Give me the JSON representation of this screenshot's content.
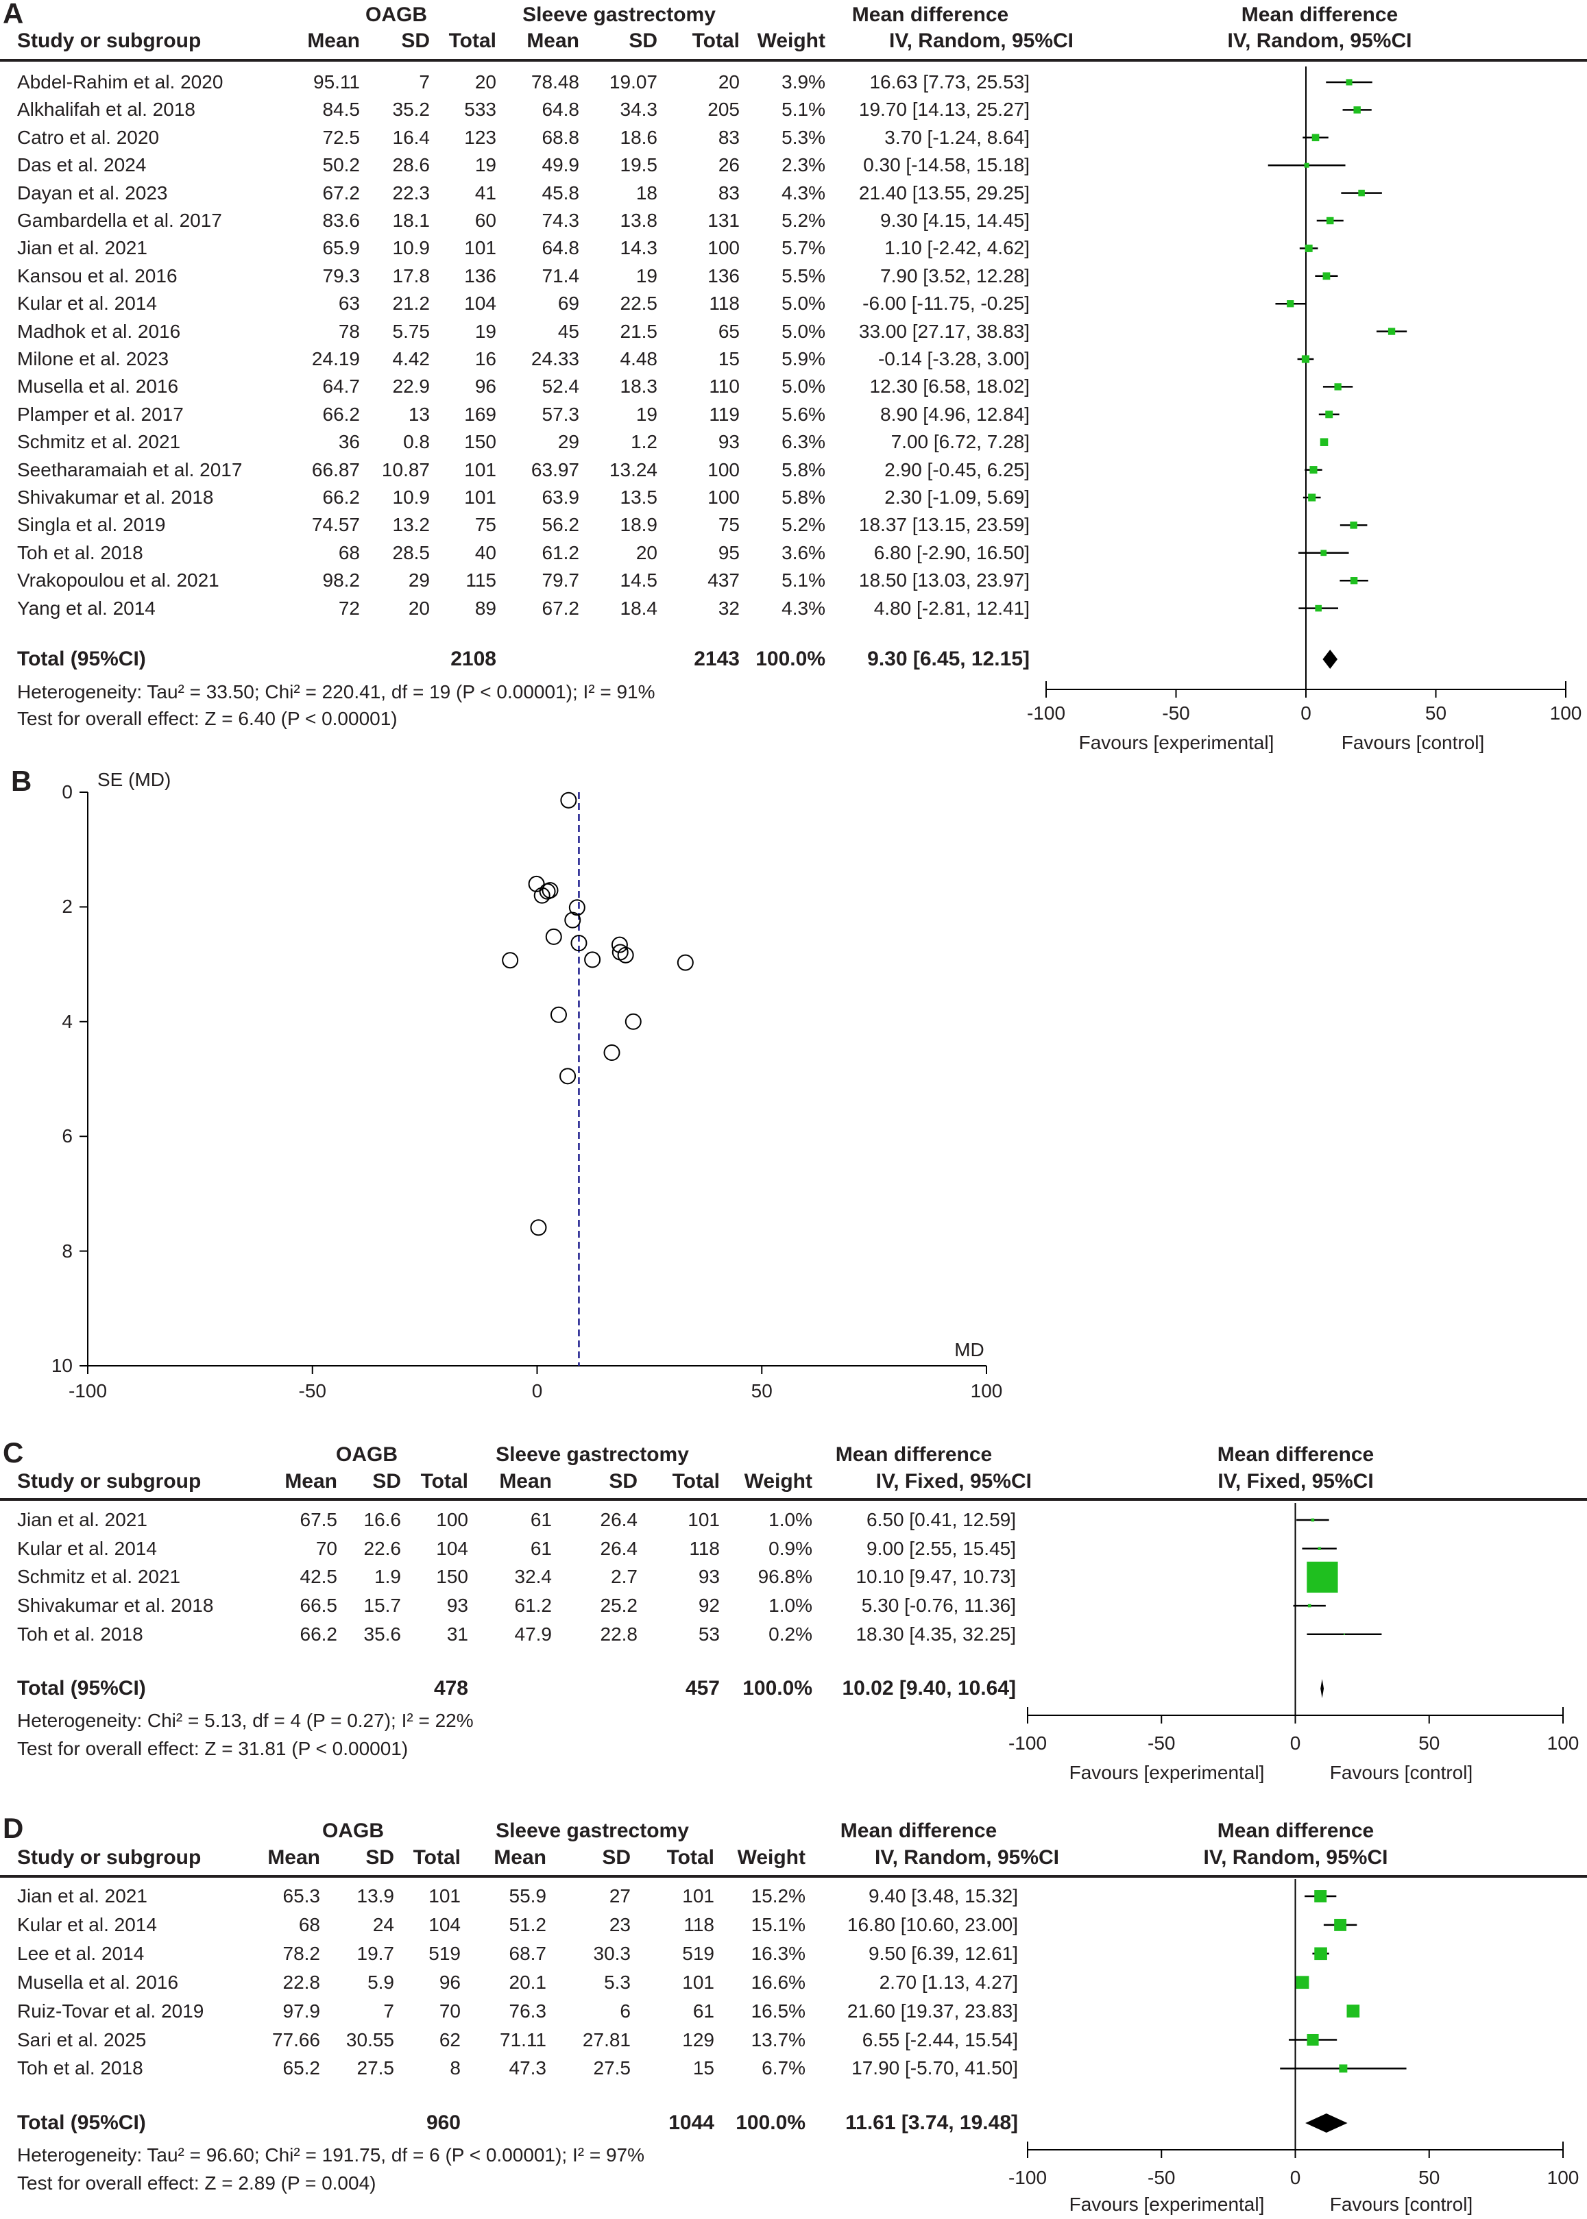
{
  "chart_data": [
    {
      "type": "forest",
      "panel_label": "A",
      "group_headers": {
        "experimental": "OAGB",
        "control": "Sleeve gastrectomy",
        "effect": "Mean difference",
        "plot_effect": "Mean difference"
      },
      "column_headers": {
        "study": "Study or subgroup",
        "mean": "Mean",
        "sd": "SD",
        "total": "Total",
        "mean2": "Mean",
        "sd2": "SD",
        "total2": "Total",
        "weight": "Weight",
        "method": "IV, Random, 95%CI",
        "plot_method": "IV, Random, 95%CI"
      },
      "studies": [
        {
          "name": "Abdel-Rahim  et al. 2020",
          "exp_mean": "95.11",
          "exp_sd": "7",
          "exp_total": "20",
          "ctrl_mean": "78.48",
          "ctrl_sd": "19.07",
          "ctrl_total": "20",
          "weight": "3.9%",
          "ci": "16.63 [7.73, 25.53]"
        },
        {
          "name": "Alkhalifah et al. 2018",
          "exp_mean": "84.5",
          "exp_sd": "35.2",
          "exp_total": "533",
          "ctrl_mean": "64.8",
          "ctrl_sd": "34.3",
          "ctrl_total": "205",
          "weight": "5.1%",
          "ci": "19.70 [14.13, 25.27]"
        },
        {
          "name": "Catro et al. 2020",
          "exp_mean": "72.5",
          "exp_sd": "16.4",
          "exp_total": "123",
          "ctrl_mean": "68.8",
          "ctrl_sd": "18.6",
          "ctrl_total": "83",
          "weight": "5.3%",
          "ci": "3.70 [-1.24, 8.64]"
        },
        {
          "name": "Das et al. 2024",
          "exp_mean": "50.2",
          "exp_sd": "28.6",
          "exp_total": "19",
          "ctrl_mean": "49.9",
          "ctrl_sd": "19.5",
          "ctrl_total": "26",
          "weight": "2.3%",
          "ci": "0.30 [-14.58, 15.18]"
        },
        {
          "name": "Dayan et al. 2023",
          "exp_mean": "67.2",
          "exp_sd": "22.3",
          "exp_total": "41",
          "ctrl_mean": "45.8",
          "ctrl_sd": "18",
          "ctrl_total": "83",
          "weight": "4.3%",
          "ci": "21.40 [13.55, 29.25]"
        },
        {
          "name": "Gambardella  et al. 2017",
          "exp_mean": "83.6",
          "exp_sd": "18.1",
          "exp_total": "60",
          "ctrl_mean": "74.3",
          "ctrl_sd": "13.8",
          "ctrl_total": "131",
          "weight": "5.2%",
          "ci": "9.30 [4.15, 14.45]"
        },
        {
          "name": "Jian et al. 2021",
          "exp_mean": "65.9",
          "exp_sd": "10.9",
          "exp_total": "101",
          "ctrl_mean": "64.8",
          "ctrl_sd": "14.3",
          "ctrl_total": "100",
          "weight": "5.7%",
          "ci": "1.10 [-2.42, 4.62]"
        },
        {
          "name": "Kansou et al. 2016",
          "exp_mean": "79.3",
          "exp_sd": "17.8",
          "exp_total": "136",
          "ctrl_mean": "71.4",
          "ctrl_sd": "19",
          "ctrl_total": "136",
          "weight": "5.5%",
          "ci": "7.90 [3.52, 12.28]"
        },
        {
          "name": "Kular et al. 2014",
          "exp_mean": "63",
          "exp_sd": "21.2",
          "exp_total": "104",
          "ctrl_mean": "69",
          "ctrl_sd": "22.5",
          "ctrl_total": "118",
          "weight": "5.0%",
          "ci": "-6.00 [-11.75, -0.25]"
        },
        {
          "name": "Madhok et al. 2016",
          "exp_mean": "78",
          "exp_sd": "5.75",
          "exp_total": "19",
          "ctrl_mean": "45",
          "ctrl_sd": "21.5",
          "ctrl_total": "65",
          "weight": "5.0%",
          "ci": "33.00 [27.17, 38.83]"
        },
        {
          "name": "Milone et al. 2023",
          "exp_mean": "24.19",
          "exp_sd": "4.42",
          "exp_total": "16",
          "ctrl_mean": "24.33",
          "ctrl_sd": "4.48",
          "ctrl_total": "15",
          "weight": "5.9%",
          "ci": "-0.14 [-3.28, 3.00]"
        },
        {
          "name": "Musella  et al. 2016",
          "exp_mean": "64.7",
          "exp_sd": "22.9",
          "exp_total": "96",
          "ctrl_mean": "52.4",
          "ctrl_sd": "18.3",
          "ctrl_total": "110",
          "weight": "5.0%",
          "ci": "12.30 [6.58, 18.02]"
        },
        {
          "name": "Plamper et al. 2017",
          "exp_mean": "66.2",
          "exp_sd": "13",
          "exp_total": "169",
          "ctrl_mean": "57.3",
          "ctrl_sd": "19",
          "ctrl_total": "119",
          "weight": "5.6%",
          "ci": "8.90 [4.96, 12.84]"
        },
        {
          "name": "Schmitz et al. 2021",
          "exp_mean": "36",
          "exp_sd": "0.8",
          "exp_total": "150",
          "ctrl_mean": "29",
          "ctrl_sd": "1.2",
          "ctrl_total": "93",
          "weight": "6.3%",
          "ci": "7.00 [6.72, 7.28]"
        },
        {
          "name": "Seetharamaiah  et al. 2017",
          "exp_mean": "66.87",
          "exp_sd": "10.87",
          "exp_total": "101",
          "ctrl_mean": "63.97",
          "ctrl_sd": "13.24",
          "ctrl_total": "100",
          "weight": "5.8%",
          "ci": "2.90 [-0.45, 6.25]"
        },
        {
          "name": "Shivakumar  et al. 2018",
          "exp_mean": "66.2",
          "exp_sd": "10.9",
          "exp_total": "101",
          "ctrl_mean": "63.9",
          "ctrl_sd": "13.5",
          "ctrl_total": "100",
          "weight": "5.8%",
          "ci": "2.30 [-1.09, 5.69]"
        },
        {
          "name": "Singla et al. 2019",
          "exp_mean": "74.57",
          "exp_sd": "13.2",
          "exp_total": "75",
          "ctrl_mean": "56.2",
          "ctrl_sd": "18.9",
          "ctrl_total": "75",
          "weight": "5.2%",
          "ci": "18.37 [13.15, 23.59]"
        },
        {
          "name": "Toh et al. 2018",
          "exp_mean": "68",
          "exp_sd": "28.5",
          "exp_total": "40",
          "ctrl_mean": "61.2",
          "ctrl_sd": "20",
          "ctrl_total": "95",
          "weight": "3.6%",
          "ci": "6.80 [-2.90, 16.50]"
        },
        {
          "name": "Vrakopoulou et al. 2021",
          "exp_mean": "98.2",
          "exp_sd": "29",
          "exp_total": "115",
          "ctrl_mean": "79.7",
          "ctrl_sd": "14.5",
          "ctrl_total": "437",
          "weight": "5.1%",
          "ci": "18.50 [13.03, 23.97]"
        },
        {
          "name": "Yang et al. 2014",
          "exp_mean": "72",
          "exp_sd": "20",
          "exp_total": "89",
          "ctrl_mean": "67.2",
          "ctrl_sd": "18.4",
          "ctrl_total": "32",
          "weight": "4.3%",
          "ci": "4.80 [-2.81, 12.41]"
        }
      ],
      "total": {
        "label": "Total (95%CI)",
        "exp_total": "2108",
        "ctrl_total": "2143",
        "weight": "100.0%",
        "ci": "9.30 [6.45, 12.15]"
      },
      "heterogeneity": "Heterogeneity: Tau² = 33.50; Chi² = 220.41, df = 19 (P < 0.00001); I² = 91%",
      "overall_effect": "Test for overall effect: Z = 6.40 (P < 0.00001)",
      "xlim": [
        -100,
        100
      ],
      "xticks": [
        -100,
        -50,
        0,
        50,
        100
      ],
      "favours_left": "Favours [experimental]",
      "favours_right": "Favours [control]",
      "colors": {
        "square": "#1fbf1f",
        "line": "#000000"
      }
    },
    {
      "type": "scatter",
      "panel_label": "B",
      "ylabel": "SE (MD)",
      "xlabel": "MD",
      "xlim": [
        -100,
        100
      ],
      "ylim": [
        0,
        10
      ],
      "y_reversed": true,
      "xticks": [
        -100,
        -50,
        0,
        50,
        100
      ],
      "yticks": [
        0,
        2,
        4,
        6,
        8,
        10
      ],
      "reference_line_md": 9.3,
      "colors": {
        "reference_line": "#1a1a8c",
        "points": "#000000"
      },
      "points": [
        {
          "md": 16.63,
          "se": 4.54
        },
        {
          "md": 19.7,
          "se": 2.84
        },
        {
          "md": 3.7,
          "se": 2.52
        },
        {
          "md": 0.3,
          "se": 7.59
        },
        {
          "md": 21.4,
          "se": 4.0
        },
        {
          "md": 9.3,
          "se": 2.63
        },
        {
          "md": 1.1,
          "se": 1.8
        },
        {
          "md": 7.9,
          "se": 2.23
        },
        {
          "md": -6.0,
          "se": 2.93
        },
        {
          "md": 33.0,
          "se": 2.97
        },
        {
          "md": -0.14,
          "se": 1.6
        },
        {
          "md": 12.3,
          "se": 2.92
        },
        {
          "md": 8.9,
          "se": 2.01
        },
        {
          "md": 7.0,
          "se": 0.14
        },
        {
          "md": 2.9,
          "se": 1.71
        },
        {
          "md": 2.3,
          "se": 1.73
        },
        {
          "md": 18.37,
          "se": 2.66
        },
        {
          "md": 6.8,
          "se": 4.95
        },
        {
          "md": 18.5,
          "se": 2.79
        },
        {
          "md": 4.8,
          "se": 3.88
        }
      ]
    },
    {
      "type": "forest",
      "panel_label": "C",
      "group_headers": {
        "experimental": "OAGB",
        "control": "Sleeve gastrectomy",
        "effect": "Mean difference",
        "plot_effect": "Mean difference"
      },
      "column_headers": {
        "study": "Study or subgroup",
        "mean": "Mean",
        "sd": "SD",
        "total": "Total",
        "mean2": "Mean",
        "sd2": "SD",
        "total2": "Total",
        "weight": "Weight",
        "method": "IV, Fixed, 95%CI",
        "plot_method": "IV, Fixed, 95%CI"
      },
      "studies": [
        {
          "name": "Jian et al. 2021",
          "exp_mean": "67.5",
          "exp_sd": "16.6",
          "exp_total": "100",
          "ctrl_mean": "61",
          "ctrl_sd": "26.4",
          "ctrl_total": "101",
          "weight": "1.0%",
          "ci": "6.50 [0.41, 12.59]"
        },
        {
          "name": "Kular et al. 2014",
          "exp_mean": "70",
          "exp_sd": "22.6",
          "exp_total": "104",
          "ctrl_mean": "61",
          "ctrl_sd": "26.4",
          "ctrl_total": "118",
          "weight": "0.9%",
          "ci": "9.00 [2.55, 15.45]"
        },
        {
          "name": "Schmitz et al. 2021",
          "exp_mean": "42.5",
          "exp_sd": "1.9",
          "exp_total": "150",
          "ctrl_mean": "32.4",
          "ctrl_sd": "2.7",
          "ctrl_total": "93",
          "weight": "96.8%",
          "ci": "10.10 [9.47, 10.73]"
        },
        {
          "name": "Shivakumar  et al. 2018",
          "exp_mean": "66.5",
          "exp_sd": "15.7",
          "exp_total": "93",
          "ctrl_mean": "61.2",
          "ctrl_sd": "25.2",
          "ctrl_total": "92",
          "weight": "1.0%",
          "ci": "5.30 [-0.76, 11.36]"
        },
        {
          "name": "Toh et al. 2018",
          "exp_mean": "66.2",
          "exp_sd": "35.6",
          "exp_total": "31",
          "ctrl_mean": "47.9",
          "ctrl_sd": "22.8",
          "ctrl_total": "53",
          "weight": "0.2%",
          "ci": "18.30 [4.35, 32.25]"
        }
      ],
      "total": {
        "label": "Total (95%CI)",
        "exp_total": "478",
        "ctrl_total": "457",
        "weight": "100.0%",
        "ci": "10.02 [9.40, 10.64]"
      },
      "heterogeneity": "Heterogeneity: Chi² = 5.13, df = 4 (P = 0.27); I² = 22%",
      "overall_effect": "Test for overall effect: Z = 31.81 (P < 0.00001)",
      "xlim": [
        -100,
        100
      ],
      "xticks": [
        -100,
        -50,
        0,
        50,
        100
      ],
      "favours_left": "Favours [experimental]",
      "favours_right": "Favours [control]",
      "colors": {
        "square": "#1fbf1f",
        "line": "#000000"
      }
    },
    {
      "type": "forest",
      "panel_label": "D",
      "group_headers": {
        "experimental": "OAGB",
        "control": "Sleeve gastrectomy",
        "effect": "Mean difference",
        "plot_effect": "Mean difference"
      },
      "column_headers": {
        "study": "Study or subgroup",
        "mean": "Mean",
        "sd": "SD",
        "total": "Total",
        "mean2": "Mean",
        "sd2": "SD",
        "total2": "Total",
        "weight": "Weight",
        "method": "IV, Random, 95%CI",
        "plot_method": "IV, Random, 95%CI"
      },
      "studies": [
        {
          "name": "Jian et al. 2021",
          "exp_mean": "65.3",
          "exp_sd": "13.9",
          "exp_total": "101",
          "ctrl_mean": "55.9",
          "ctrl_sd": "27",
          "ctrl_total": "101",
          "weight": "15.2%",
          "ci": "9.40 [3.48, 15.32]"
        },
        {
          "name": "Kular et al. 2014",
          "exp_mean": "68",
          "exp_sd": "24",
          "exp_total": "104",
          "ctrl_mean": "51.2",
          "ctrl_sd": "23",
          "ctrl_total": "118",
          "weight": "15.1%",
          "ci": "16.80 [10.60, 23.00]"
        },
        {
          "name": "Lee et al. 2014",
          "exp_mean": "78.2",
          "exp_sd": "19.7",
          "exp_total": "519",
          "ctrl_mean": "68.7",
          "ctrl_sd": "30.3",
          "ctrl_total": "519",
          "weight": "16.3%",
          "ci": "9.50 [6.39, 12.61]"
        },
        {
          "name": "Musella  et al. 2016",
          "exp_mean": "22.8",
          "exp_sd": "5.9",
          "exp_total": "96",
          "ctrl_mean": "20.1",
          "ctrl_sd": "5.3",
          "ctrl_total": "101",
          "weight": "16.6%",
          "ci": "2.70 [1.13, 4.27]"
        },
        {
          "name": "Ruiz-Tovar et al. 2019",
          "exp_mean": "97.9",
          "exp_sd": "7",
          "exp_total": "70",
          "ctrl_mean": "76.3",
          "ctrl_sd": "6",
          "ctrl_total": "61",
          "weight": "16.5%",
          "ci": "21.60 [19.37, 23.83]"
        },
        {
          "name": "Sari et al. 2025",
          "exp_mean": "77.66",
          "exp_sd": "30.55",
          "exp_total": "62",
          "ctrl_mean": "71.11",
          "ctrl_sd": "27.81",
          "ctrl_total": "129",
          "weight": "13.7%",
          "ci": "6.55 [-2.44, 15.54]"
        },
        {
          "name": "Toh et al. 2018",
          "exp_mean": "65.2",
          "exp_sd": "27.5",
          "exp_total": "8",
          "ctrl_mean": "47.3",
          "ctrl_sd": "27.5",
          "ctrl_total": "15",
          "weight": "6.7%",
          "ci": "17.90 [-5.70, 41.50]"
        }
      ],
      "total": {
        "label": "Total (95%CI)",
        "exp_total": "960",
        "ctrl_total": "1044",
        "weight": "100.0%",
        "ci": "11.61 [3.74, 19.48]"
      },
      "heterogeneity": "Heterogeneity: Tau² = 96.60; Chi² = 191.75, df = 6 (P < 0.00001); I² = 97%",
      "overall_effect": "Test for overall effect: Z = 2.89 (P = 0.004)",
      "xlim": [
        -100,
        100
      ],
      "xticks": [
        -100,
        -50,
        0,
        50,
        100
      ],
      "favours_left": "Favours [experimental]",
      "favours_right": "Favours [control]",
      "colors": {
        "square": "#1fbf1f",
        "line": "#000000"
      }
    }
  ]
}
